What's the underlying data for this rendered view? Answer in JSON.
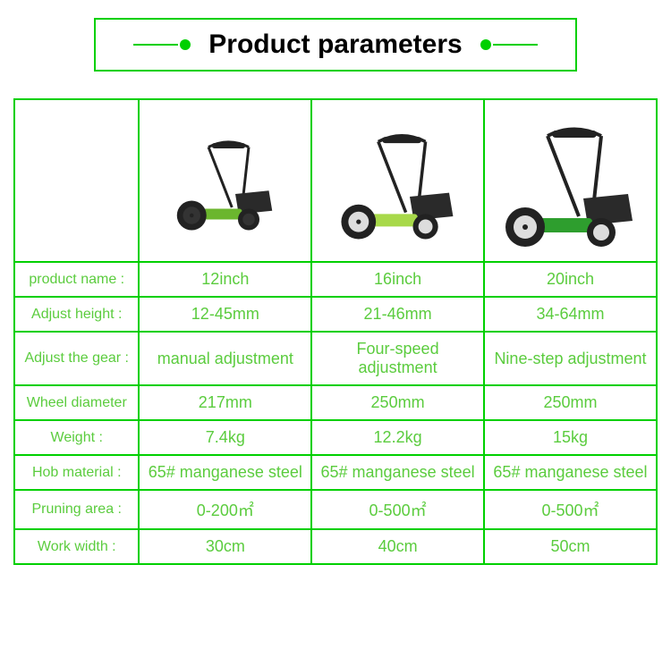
{
  "title": "Product parameters",
  "colors": {
    "border": "#00d000",
    "text": "#5bcc3e",
    "title_text": "#000000",
    "background": "#ffffff"
  },
  "table": {
    "labels": [
      "product name :",
      "Adjust height :",
      "Adjust the gear :",
      "Wheel diameter",
      "Weight :",
      "Hob material :",
      "Pruning area :",
      "Work width :"
    ],
    "columns": [
      {
        "values": [
          "12inch",
          "12-45mm",
          "manual adjustment",
          "217mm",
          "7.4kg",
          "65# manganese steel",
          "0-200㎡",
          "30cm"
        ],
        "mower": {
          "body_color": "#6bb62e",
          "wheel_color": "#222222",
          "wheel_inner": "#333333",
          "handle_color": "#222222",
          "bag_color": "#2a2a2a",
          "scale": 0.75
        }
      },
      {
        "values": [
          "16inch",
          "21-46mm",
          "Four-speed adjustment",
          "250mm",
          "12.2kg",
          "65# manganese steel",
          "0-500㎡",
          "40cm"
        ],
        "mower": {
          "body_color": "#a8d94a",
          "wheel_color": "#222222",
          "wheel_inner": "#dddddd",
          "handle_color": "#222222",
          "bag_color": "#2a2a2a",
          "scale": 0.88
        }
      },
      {
        "values": [
          "20inch",
          "34-64mm",
          "Nine-step adjustment",
          "250mm",
          "15kg",
          "65# manganese steel",
          "0-500㎡",
          "50cm"
        ],
        "mower": {
          "body_color": "#2e9e2e",
          "wheel_color": "#222222",
          "wheel_inner": "#dddddd",
          "handle_color": "#222222",
          "bag_color": "#2a2a2a",
          "scale": 1.0
        }
      }
    ]
  }
}
